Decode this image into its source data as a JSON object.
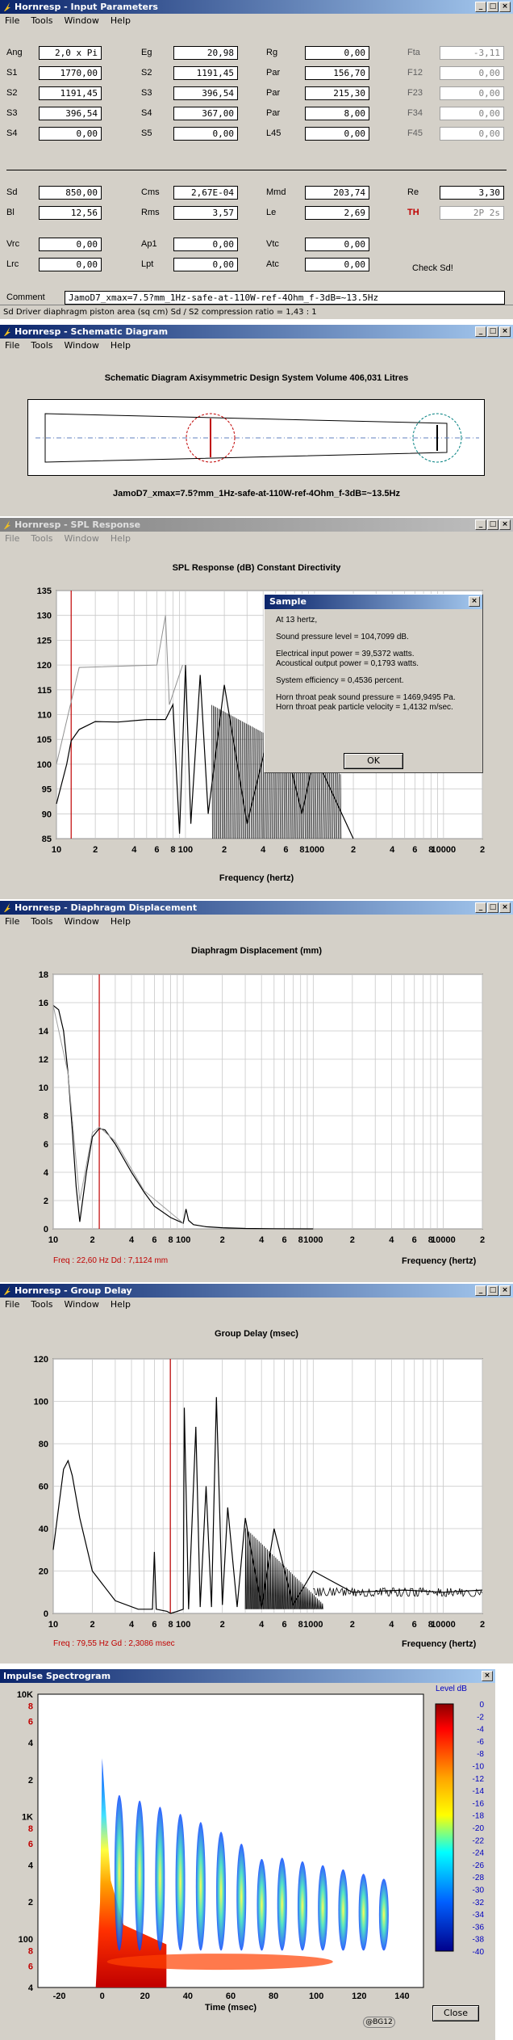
{
  "input_params": {
    "title": "Hornresp - Input Parameters",
    "menu": [
      "File",
      "Tools",
      "Window",
      "Help"
    ],
    "rows1": [
      {
        "l1": "Ang",
        "v1": "2,0 x Pi",
        "l2": "Eg",
        "v2": "20,98",
        "l3": "Rg",
        "v3": "0,00",
        "l4": "Fta",
        "v4": "-3,11"
      },
      {
        "l1": "S1",
        "v1": "1770,00",
        "l2": "S2",
        "v2": "1191,45",
        "l3": "Par",
        "v3": "156,70",
        "l4": "F12",
        "v4": "0,00"
      },
      {
        "l1": "S2",
        "v1": "1191,45",
        "l2": "S3",
        "v2": "396,54",
        "l3": "Par",
        "v3": "215,30",
        "l4": "F23",
        "v4": "0,00"
      },
      {
        "l1": "S3",
        "v1": "396,54",
        "l2": "S4",
        "v2": "367,00",
        "l3": "Par",
        "v3": "8,00",
        "l4": "F34",
        "v4": "0,00"
      },
      {
        "l1": "S4",
        "v1": "0,00",
        "l2": "S5",
        "v2": "0,00",
        "l3": "L45",
        "v3": "0,00",
        "l4": "F45",
        "v4": "0,00"
      }
    ],
    "rows2": [
      {
        "l1": "Sd",
        "v1": "850,00",
        "l2": "Cms",
        "v2": "2,67E-04",
        "l3": "Mmd",
        "v3": "203,74",
        "l4": "Re",
        "v4": "3,30"
      },
      {
        "l1": "Bl",
        "v1": "12,56",
        "l2": "Rms",
        "v2": "3,57",
        "l3": "Le",
        "v3": "2,69",
        "l4": "TH",
        "v4": "2P 2s"
      }
    ],
    "rows3": [
      {
        "l1": "Vrc",
        "v1": "0,00",
        "l2": "Ap1",
        "v2": "0,00",
        "l3": "Vtc",
        "v3": "0,00"
      },
      {
        "l1": "Lrc",
        "v1": "0,00",
        "l2": "Lpt",
        "v2": "0,00",
        "l3": "Atc",
        "v3": "0,00"
      }
    ],
    "check_sd": "Check Sd!",
    "comment_label": "Comment",
    "comment_value": "JamoD7_xmax=7.5?mm_1Hz-safe-at-110W-ref-4Ohm_f-3dB=~13.5Hz",
    "status": "Sd   Driver diaphragm piston area  (sq cm)    Sd / S2 compression ratio = 1,43 : 1"
  },
  "schematic": {
    "title": "Hornresp - Schematic Diagram",
    "menu": [
      "File",
      "Tools",
      "Window",
      "Help"
    ],
    "heading": "Schematic Diagram   Axisymmetric Design   System Volume 406,031 Litres",
    "caption": "JamoD7_xmax=7.5?mm_1Hz-safe-at-110W-ref-4Ohm_f-3dB=~13.5Hz"
  },
  "spl": {
    "title": "Hornresp - SPL Response",
    "menu": [
      "File",
      "Tools",
      "Window",
      "Help"
    ],
    "heading": "SPL Response (dB)   Constant Directivity",
    "xlabel": "Frequency (hertz)",
    "xticks": [
      "10",
      "2",
      "4",
      "6",
      "8",
      "100",
      "2",
      "4",
      "6",
      "8",
      "1000",
      "2",
      "4",
      "6",
      "8",
      "10000",
      "2"
    ],
    "yticks": [
      "85",
      "90",
      "95",
      "100",
      "105",
      "110",
      "115",
      "120",
      "125",
      "130",
      "135"
    ],
    "dialog": {
      "title": "Sample",
      "lines": [
        "At 13 hertz,",
        "Sound pressure level = 104,7099 dB.",
        "Electrical input power = 39,5372 watts.",
        "Acoustical output power = 0,1793 watts.",
        "System efficiency = 0,4536 percent.",
        "Horn throat peak sound pressure = 1469,9495 Pa.",
        "Horn throat peak particle velocity = 1,4132 m/sec."
      ],
      "ok": "OK"
    }
  },
  "disp": {
    "title": "Hornresp - Diaphragm Displacement",
    "menu": [
      "File",
      "Tools",
      "Window",
      "Help"
    ],
    "heading": "Diaphragm Displacement (mm)",
    "xlabel": "Frequency (hertz)",
    "xticks": [
      "10",
      "2",
      "4",
      "6",
      "8",
      "100",
      "2",
      "4",
      "6",
      "8",
      "1000",
      "2",
      "4",
      "6",
      "8",
      "10000",
      "2"
    ],
    "yticks": [
      "0",
      "2",
      "4",
      "6",
      "8",
      "10",
      "12",
      "14",
      "16",
      "18"
    ],
    "readout": "Freq : 22,60 Hz    Dd : 7,1124 mm"
  },
  "gd": {
    "title": "Hornresp - Group Delay",
    "menu": [
      "File",
      "Tools",
      "Window",
      "Help"
    ],
    "heading": "Group Delay (msec)",
    "xlabel": "Frequency (hertz)",
    "xticks": [
      "10",
      "2",
      "4",
      "6",
      "8",
      "100",
      "2",
      "4",
      "6",
      "8",
      "1000",
      "2",
      "4",
      "6",
      "8",
      "10000",
      "2"
    ],
    "yticks": [
      "0",
      "20",
      "40",
      "60",
      "80",
      "100",
      "120"
    ],
    "readout": "Freq : 79,55 Hz    Gd : 2,3086 msec"
  },
  "spec": {
    "title": "Impulse Spectrogram",
    "yticks": [
      "10K",
      "8",
      "6",
      "4",
      "2",
      "1K",
      "8",
      "6",
      "4",
      "2",
      "100",
      "8",
      "6",
      "4"
    ],
    "xticks": [
      "-20",
      "0",
      "20",
      "40",
      "60",
      "80",
      "100",
      "120",
      "140"
    ],
    "xlabel": "Time (msec)",
    "legend_title": "Level  dB",
    "legend": [
      "0",
      "-2",
      "-4",
      "-6",
      "-8",
      "-10",
      "-12",
      "-14",
      "-16",
      "-18",
      "-20",
      "-22",
      "-24",
      "-26",
      "-28",
      "-30",
      "-32",
      "-34",
      "-36",
      "-38",
      "-40"
    ],
    "close": "Close",
    "badge": "@BG12"
  },
  "chart_data": [
    {
      "type": "line",
      "title": "SPL Response (dB)   Constant Directivity",
      "xlabel": "Frequency (hertz)",
      "ylabel": "SPL Response (dB)",
      "xscale": "log",
      "xlim": [
        10,
        20000
      ],
      "ylim": [
        85,
        135
      ],
      "series": [
        {
          "x": [
            10,
            12,
            13,
            15,
            20,
            30,
            50,
            70,
            80,
            90,
            100,
            110,
            130,
            150,
            200,
            300,
            500,
            800,
            1000,
            1500,
            2000
          ],
          "y": [
            92,
            100,
            104.7,
            107,
            108.6,
            108.5,
            109,
            109,
            112,
            86,
            120,
            88,
            118,
            90,
            116,
            88,
            112,
            90,
            102,
            92,
            85
          ]
        }
      ],
      "markers": [
        {
          "x": 13
        }
      ]
    },
    {
      "type": "line",
      "title": "Diaphragm Displacement (mm)",
      "xlabel": "Frequency (hertz)",
      "ylabel": "Diaphragm Displacement (mm)",
      "xscale": "log",
      "xlim": [
        10,
        20000
      ],
      "ylim": [
        0,
        18
      ],
      "series": [
        {
          "x": [
            10,
            11,
            12,
            13,
            14,
            15,
            16,
            18,
            20,
            22.6,
            25,
            30,
            40,
            50,
            60,
            80,
            100,
            105,
            110,
            120,
            150,
            200,
            300,
            500,
            1000
          ],
          "y": [
            15.8,
            15.5,
            14.0,
            11.0,
            7.0,
            3.0,
            0.5,
            4.0,
            6.5,
            7.1,
            7.0,
            6.0,
            4.0,
            2.6,
            1.6,
            0.8,
            0.4,
            1.4,
            0.6,
            0.3,
            0.15,
            0.08,
            0.03,
            0.01,
            0
          ]
        }
      ],
      "markers": [
        {
          "x": 22.6
        }
      ]
    },
    {
      "type": "line",
      "title": "Group Delay (msec)",
      "xlabel": "Frequency (hertz)",
      "ylabel": "Group Delay (msec)",
      "xscale": "log",
      "xlim": [
        10,
        20000
      ],
      "ylim": [
        0,
        120
      ],
      "series": [
        {
          "x": [
            10,
            11,
            12,
            13,
            14,
            16,
            20,
            30,
            45,
            58,
            60,
            62,
            75,
            80,
            90,
            100,
            102,
            110,
            125,
            135,
            150,
            165,
            180,
            200,
            220,
            260,
            300,
            400,
            500,
            700,
            1000,
            2000,
            5000,
            10000,
            20000
          ],
          "y": [
            30,
            50,
            68,
            72,
            65,
            45,
            20,
            6,
            2,
            2,
            29,
            2,
            1,
            0,
            1,
            2,
            97,
            2,
            88,
            3,
            60,
            3,
            102,
            4,
            50,
            3,
            45,
            3,
            40,
            4,
            20,
            10,
            11,
            10,
            11
          ]
        }
      ],
      "markers": [
        {
          "x": 79.55
        }
      ]
    },
    {
      "type": "heatmap",
      "title": "Impulse Spectrogram",
      "xlabel": "Time (msec)",
      "xlim": [
        -30,
        150
      ],
      "ylim": [
        40,
        10000
      ],
      "yscale": "log",
      "zlabel": "Level dB",
      "zlim": [
        -40,
        0
      ]
    }
  ]
}
